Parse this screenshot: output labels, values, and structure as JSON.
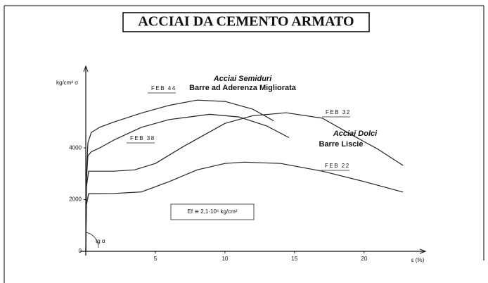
{
  "chart_data": {
    "type": "line",
    "title": "ACCIAI DA CEMENTO ARMATO",
    "y_label": "kg/cm² σ",
    "x_label": "ε (%)",
    "xlim": [
      0,
      24
    ],
    "ylim": [
      0,
      7000
    ],
    "xticks": [
      5,
      10,
      15,
      20
    ],
    "yticks": [
      0,
      2000,
      4000
    ],
    "grid": false,
    "color": "#222222",
    "annotations": [
      "Acciai Semiduri",
      "Barre ad Aderenza Migliorata",
      "Acciai Dolci",
      "Barre Liscie",
      "Ef ≅ 2,1·10⁶ kg/cm²",
      "tg α"
    ],
    "series": [
      {
        "name": "FEB 44",
        "color": "#222222",
        "x": [
          0,
          0.05,
          0.15,
          0.4,
          1,
          2,
          4,
          6,
          8,
          10,
          12,
          13.5
        ],
        "values": [
          0,
          3000,
          4200,
          4600,
          4800,
          5000,
          5350,
          5650,
          5850,
          5800,
          5500,
          5050
        ]
      },
      {
        "name": "FEB 38",
        "color": "#222222",
        "x": [
          0,
          0.05,
          0.15,
          0.4,
          1,
          2,
          4,
          6,
          8.9,
          11,
          13,
          14.6
        ],
        "values": [
          0,
          2800,
          3700,
          3850,
          4000,
          4300,
          4800,
          5100,
          5300,
          5200,
          4850,
          4400
        ]
      },
      {
        "name": "FEB 32",
        "color": "#222222",
        "x": [
          0,
          0.05,
          0.2,
          1,
          2,
          3.5,
          5,
          7,
          10,
          12,
          14.4,
          17,
          19,
          21,
          22.8
        ],
        "values": [
          0,
          2500,
          3100,
          3100,
          3100,
          3150,
          3400,
          4050,
          4950,
          5250,
          5360,
          5150,
          4540,
          3950,
          3320
        ]
      },
      {
        "name": "FEB 22",
        "color": "#222222",
        "x": [
          0,
          0.05,
          0.2,
          2,
          4,
          6,
          8,
          10,
          11.4,
          14,
          17,
          20,
          22.8
        ],
        "values": [
          0,
          1800,
          2230,
          2240,
          2300,
          2700,
          3150,
          3400,
          3450,
          3400,
          3100,
          2700,
          2290
        ]
      }
    ]
  }
}
